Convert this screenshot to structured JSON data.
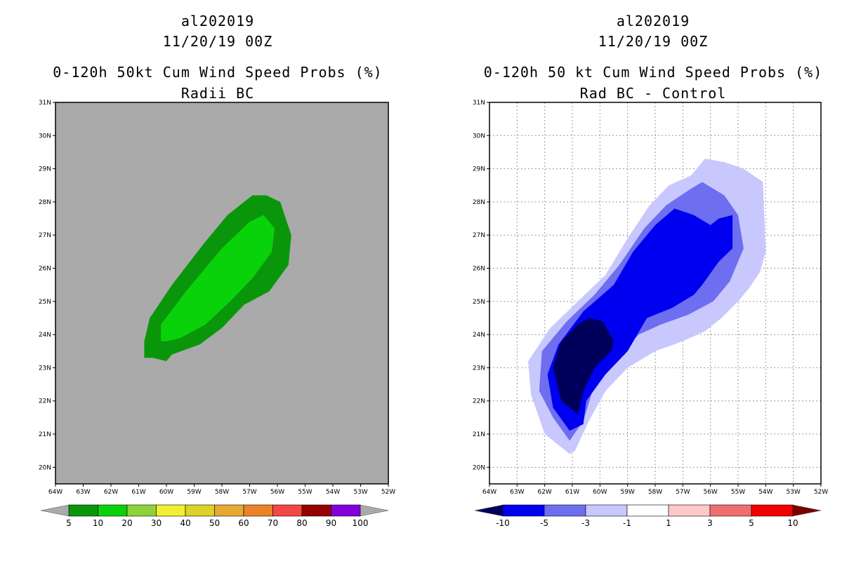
{
  "left_panel": {
    "case_id": "al202019",
    "datetime": "11/20/19 00Z",
    "title": "0-120h 50kt Cum Wind Speed Probs (%)",
    "subtitle": "Radii BC"
  },
  "right_panel": {
    "case_id": "al202019",
    "datetime": "11/20/19 00Z",
    "title": "0-120h 50 kt Cum Wind Speed Probs (%)",
    "subtitle": "Rad BC - Control"
  },
  "colors": {
    "left_background": "#aaaaaa",
    "left_levels": [
      "#0a960a",
      "#0ad20a",
      "#8cd23c",
      "#f0f032",
      "#dcd228",
      "#e6aa32",
      "#eb8228",
      "#f54646",
      "#960000",
      "#8200dc"
    ],
    "right_levels": [
      "#00005a",
      "#0000f0",
      "#6e6ef0",
      "#c8c8ff",
      "#ffffff",
      "#ffc8c8",
      "#f06e6e",
      "#f00000",
      "#780000"
    ]
  },
  "chart_data": [
    {
      "type": "contour",
      "title": "0-120h 50kt Cum Wind Speed Probs (%)",
      "subtitle": "Radii BC",
      "x_ticks": [
        "64W",
        "63W",
        "62W",
        "61W",
        "60W",
        "59W",
        "58W",
        "57W",
        "56W",
        "55W",
        "54W",
        "53W",
        "52W"
      ],
      "y_ticks": [
        "20N",
        "21N",
        "22N",
        "23N",
        "24N",
        "25N",
        "26N",
        "27N",
        "28N",
        "29N",
        "30N",
        "31N"
      ],
      "xlim": [
        -64,
        -52
      ],
      "ylim": [
        19.5,
        31
      ],
      "grid": false,
      "colorbar": {
        "levels": [
          "5",
          "10",
          "20",
          "30",
          "40",
          "50",
          "60",
          "70",
          "80",
          "90",
          "100"
        ]
      },
      "contours": [
        {
          "name": "prob 5-10%",
          "level": "5-10",
          "points": [
            [
              -60.5,
              23.3
            ],
            [
              -60.8,
              23.3
            ],
            [
              -60.8,
              23.8
            ],
            [
              -60.6,
              24.5
            ],
            [
              -59.8,
              25.5
            ],
            [
              -58.6,
              26.8
            ],
            [
              -57.8,
              27.6
            ],
            [
              -56.9,
              28.2
            ],
            [
              -56.4,
              28.2
            ],
            [
              -55.9,
              28.0
            ],
            [
              -55.5,
              27.0
            ],
            [
              -55.6,
              26.1
            ],
            [
              -56.3,
              25.3
            ],
            [
              -57.2,
              24.9
            ],
            [
              -58.0,
              24.2
            ],
            [
              -58.8,
              23.7
            ],
            [
              -59.8,
              23.4
            ],
            [
              -60.0,
              23.2
            ]
          ]
        },
        {
          "name": "prob 10-20%",
          "level": "10-20",
          "points": [
            [
              -60.2,
              23.8
            ],
            [
              -60.2,
              24.3
            ],
            [
              -59.3,
              25.3
            ],
            [
              -58.0,
              26.6
            ],
            [
              -57.0,
              27.4
            ],
            [
              -56.5,
              27.6
            ],
            [
              -56.1,
              27.2
            ],
            [
              -56.2,
              26.5
            ],
            [
              -56.9,
              25.7
            ],
            [
              -57.7,
              25.0
            ],
            [
              -58.6,
              24.3
            ],
            [
              -59.5,
              23.9
            ],
            [
              -60.0,
              23.8
            ]
          ]
        }
      ]
    },
    {
      "type": "contour",
      "title": "0-120h 50 kt Cum Wind Speed Probs (%)",
      "subtitle": "Rad BC - Control",
      "x_ticks": [
        "64W",
        "63W",
        "62W",
        "61W",
        "60W",
        "59W",
        "58W",
        "57W",
        "56W",
        "55W",
        "54W",
        "53W",
        "52W"
      ],
      "y_ticks": [
        "20N",
        "21N",
        "22N",
        "23N",
        "24N",
        "25N",
        "26N",
        "27N",
        "28N",
        "29N",
        "30N",
        "31N"
      ],
      "xlim": [
        -64,
        -52
      ],
      "ylim": [
        19.5,
        31
      ],
      "grid": true,
      "colorbar": {
        "levels": [
          "-10",
          "-5",
          "-3",
          "-1",
          "1",
          "3",
          "5",
          "10"
        ]
      },
      "contours": [
        {
          "name": "diff -3 to -1",
          "level": "-3 to -1",
          "points": [
            [
              -61.1,
              20.4
            ],
            [
              -62.0,
              21.0
            ],
            [
              -62.5,
              22.2
            ],
            [
              -62.6,
              23.2
            ],
            [
              -61.8,
              24.2
            ],
            [
              -60.8,
              25.0
            ],
            [
              -59.8,
              25.8
            ],
            [
              -59.0,
              26.9
            ],
            [
              -58.2,
              27.9
            ],
            [
              -57.5,
              28.5
            ],
            [
              -56.7,
              28.8
            ],
            [
              -56.2,
              29.3
            ],
            [
              -55.5,
              29.2
            ],
            [
              -54.8,
              29.0
            ],
            [
              -54.1,
              28.6
            ],
            [
              -54.0,
              26.5
            ],
            [
              -54.2,
              25.9
            ],
            [
              -54.6,
              25.4
            ],
            [
              -55.0,
              25.0
            ],
            [
              -55.6,
              24.5
            ],
            [
              -56.2,
              24.1
            ],
            [
              -57.0,
              23.8
            ],
            [
              -58.0,
              23.5
            ],
            [
              -59.0,
              23.0
            ],
            [
              -59.8,
              22.3
            ],
            [
              -60.4,
              21.4
            ],
            [
              -60.9,
              20.5
            ]
          ]
        },
        {
          "name": "diff -5 to -3",
          "level": "-5 to -3",
          "points": [
            [
              -61.1,
              20.8
            ],
            [
              -61.7,
              21.5
            ],
            [
              -62.2,
              22.3
            ],
            [
              -62.1,
              23.5
            ],
            [
              -61.2,
              24.4
            ],
            [
              -60.2,
              25.2
            ],
            [
              -59.3,
              26.1
            ],
            [
              -58.4,
              27.2
            ],
            [
              -57.6,
              27.9
            ],
            [
              -56.7,
              28.4
            ],
            [
              -56.3,
              28.6
            ],
            [
              -55.5,
              28.2
            ],
            [
              -55.0,
              27.6
            ],
            [
              -54.8,
              26.6
            ],
            [
              -55.3,
              25.6
            ],
            [
              -55.9,
              25.0
            ],
            [
              -56.8,
              24.6
            ],
            [
              -57.8,
              24.3
            ],
            [
              -58.6,
              24.0
            ],
            [
              -59.4,
              23.3
            ],
            [
              -60.2,
              22.5
            ],
            [
              -60.6,
              21.4
            ]
          ]
        },
        {
          "name": "diff -10 to -5",
          "level": "-10 to -5",
          "points": [
            [
              -61.1,
              21.1
            ],
            [
              -61.7,
              21.8
            ],
            [
              -61.9,
              22.8
            ],
            [
              -61.5,
              23.7
            ],
            [
              -60.6,
              24.7
            ],
            [
              -59.5,
              25.5
            ],
            [
              -58.8,
              26.5
            ],
            [
              -58.0,
              27.3
            ],
            [
              -57.3,
              27.8
            ],
            [
              -56.6,
              27.6
            ],
            [
              -56.0,
              27.3
            ],
            [
              -55.7,
              27.5
            ],
            [
              -55.2,
              27.6
            ],
            [
              -55.2,
              26.6
            ],
            [
              -55.7,
              26.2
            ],
            [
              -56.3,
              25.5
            ],
            [
              -56.6,
              25.2
            ],
            [
              -57.4,
              24.8
            ],
            [
              -58.3,
              24.5
            ],
            [
              -59.0,
              23.5
            ],
            [
              -59.8,
              22.8
            ],
            [
              -60.5,
              22.0
            ],
            [
              -60.6,
              21.3
            ]
          ]
        },
        {
          "name": "diff below -10",
          "level": "< -10",
          "points": [
            [
              -60.8,
              21.6
            ],
            [
              -61.4,
              22.0
            ],
            [
              -61.7,
              23.0
            ],
            [
              -61.4,
              23.8
            ],
            [
              -60.8,
              24.3
            ],
            [
              -60.4,
              24.5
            ],
            [
              -59.9,
              24.4
            ],
            [
              -59.5,
              23.8
            ],
            [
              -59.6,
              23.5
            ],
            [
              -60.2,
              23.0
            ],
            [
              -60.6,
              22.3
            ]
          ]
        }
      ]
    }
  ]
}
